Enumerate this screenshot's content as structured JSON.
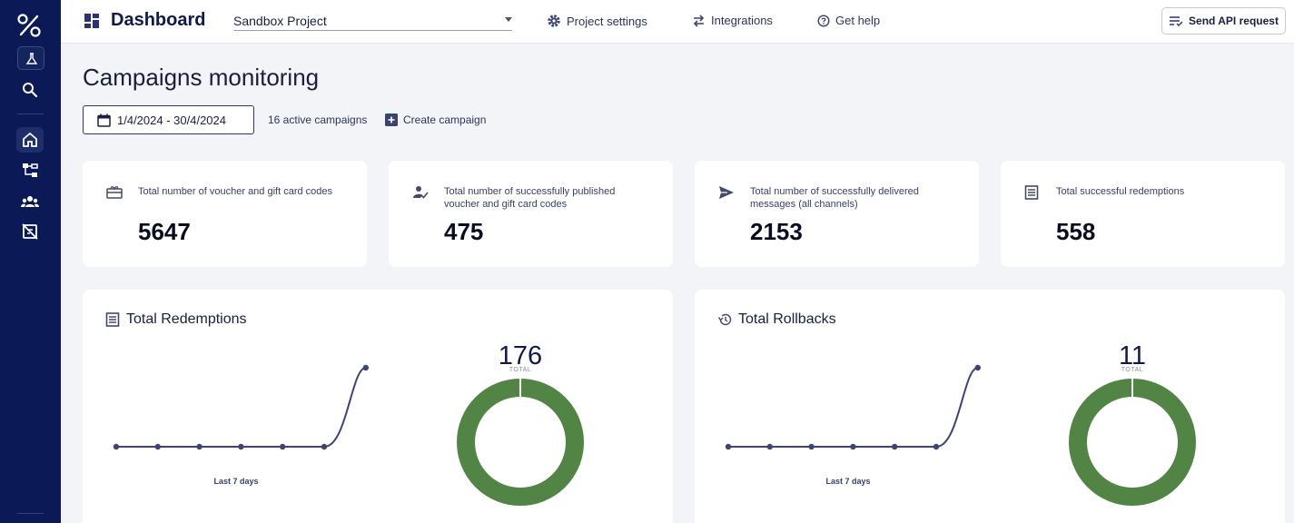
{
  "header": {
    "title": "Dashboard",
    "project": "Sandbox Project",
    "nav": [
      "Project settings",
      "Integrations",
      "Get help"
    ],
    "api_button": "Send API request"
  },
  "page": {
    "title": "Campaigns monitoring",
    "date_range": "1/4/2024 - 30/4/2024",
    "active_campaigns": "16 active campaigns",
    "create_campaign": "Create campaign"
  },
  "stats": [
    {
      "label": "Total number of voucher and gift card codes",
      "value": "5647",
      "icon": "gift-card-icon"
    },
    {
      "label": "Total number of successfully published voucher and gift card codes",
      "value": "475",
      "icon": "person-check-icon"
    },
    {
      "label": "Total number of successfully delivered messages (all channels)",
      "value": "2153",
      "icon": "send-icon"
    },
    {
      "label": "Total successful redemptions",
      "value": "558",
      "icon": "document-icon"
    }
  ],
  "charts": [
    {
      "title": "Total Redemptions",
      "icon": "document-icon",
      "x_caption": "Last 7 days",
      "total": "176",
      "total_caption": "TOTAL",
      "series": [
        0,
        0,
        0,
        0,
        0,
        0,
        176
      ]
    },
    {
      "title": "Total Rollbacks",
      "icon": "history-icon",
      "x_caption": "Last 7 days",
      "total": "11",
      "total_caption": "TOTAL",
      "series": [
        0,
        0,
        0,
        0,
        0,
        0,
        11
      ]
    }
  ],
  "colors": {
    "sidebar": "#0b1a57",
    "line": "#3d4575",
    "donut": "#528545"
  }
}
